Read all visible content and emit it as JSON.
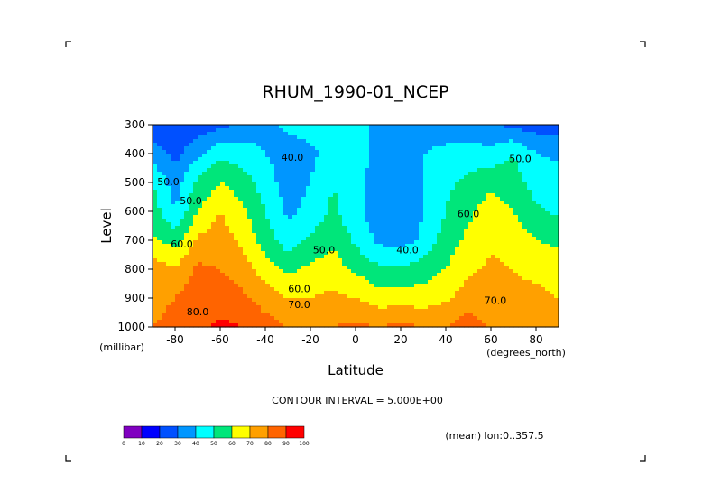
{
  "chart_data": {
    "type": "heatmap",
    "title": "RHUM_1990-01_NCEP",
    "xlabel": "Latitude",
    "ylabel": "Level",
    "x_unit": "(degrees_north)",
    "y_unit": "(millibar)",
    "xlim": [
      -90,
      90
    ],
    "ylim": [
      1000,
      300
    ],
    "x_ticks": [
      "-80",
      "-60",
      "-40",
      "-20",
      "0",
      "20",
      "40",
      "60",
      "80"
    ],
    "y_ticks": [
      "300",
      "400",
      "500",
      "600",
      "700",
      "800",
      "900",
      "1000"
    ],
    "contour_interval_text": "CONTOUR INTERVAL = 5.000E+00",
    "footnote": "(mean) lon:0..357.5",
    "contour_labels": [
      {
        "text": "40.0",
        "x": -28,
        "y": 425
      },
      {
        "text": "40.0",
        "x": 23,
        "y": 745
      },
      {
        "text": "50.0",
        "x": -83,
        "y": 510
      },
      {
        "text": "50.0",
        "x": -73,
        "y": 575
      },
      {
        "text": "50.0",
        "x": -14,
        "y": 745
      },
      {
        "text": "50.0",
        "x": 73,
        "y": 430
      },
      {
        "text": "60.0",
        "x": -77,
        "y": 725
      },
      {
        "text": "60.0",
        "x": -25,
        "y": 880
      },
      {
        "text": "60.0",
        "x": 50,
        "y": 620
      },
      {
        "text": "70.0",
        "x": -25,
        "y": 935
      },
      {
        "text": "70.0",
        "x": 62,
        "y": 920
      },
      {
        "text": "80.0",
        "x": -70,
        "y": 960
      }
    ],
    "colorbar": {
      "labels": [
        "0",
        "10",
        "20",
        "30",
        "40",
        "50",
        "60",
        "70",
        "80",
        "90",
        "100"
      ],
      "colors": [
        "#8000c0",
        "#0000ff",
        "#0050ff",
        "#0096ff",
        "#00ffff",
        "#00e67a",
        "#ffff00",
        "#ffa000",
        "#ff6400",
        "#ff0000"
      ]
    },
    "latitudes": [
      -90,
      -80,
      -70,
      -60,
      -50,
      -40,
      -30,
      -20,
      -10,
      0,
      10,
      20,
      30,
      40,
      50,
      60,
      70,
      80,
      90
    ],
    "levels": [
      300,
      400,
      500,
      600,
      700,
      800,
      900,
      1000
    ],
    "values": [
      [
        22,
        20,
        23,
        27,
        33,
        38,
        42,
        45,
        50,
        46,
        36,
        35,
        36,
        36,
        33,
        30,
        28,
        25,
        25
      ],
      [
        35,
        27,
        38,
        48,
        45,
        40,
        35,
        37,
        45,
        45,
        37,
        35,
        40,
        42,
        45,
        43,
        50,
        40,
        38
      ],
      [
        50,
        35,
        52,
        60,
        55,
        45,
        35,
        40,
        50,
        43,
        35,
        33,
        40,
        48,
        52,
        58,
        55,
        45,
        45
      ],
      [
        55,
        40,
        60,
        70,
        62,
        50,
        38,
        43,
        52,
        43,
        33,
        30,
        40,
        50,
        58,
        65,
        60,
        52,
        48
      ],
      [
        62,
        55,
        72,
        75,
        68,
        55,
        45,
        52,
        58,
        48,
        38,
        35,
        42,
        55,
        62,
        68,
        65,
        60,
        58
      ],
      [
        75,
        72,
        82,
        80,
        75,
        65,
        58,
        62,
        65,
        58,
        52,
        52,
        55,
        60,
        68,
        72,
        70,
        68,
        65
      ],
      [
        78,
        80,
        85,
        85,
        82,
        75,
        70,
        70,
        72,
        70,
        65,
        65,
        65,
        68,
        75,
        72,
        72,
        72,
        70
      ],
      [
        80,
        82,
        88,
        92,
        90,
        85,
        80,
        78,
        80,
        82,
        80,
        82,
        80,
        80,
        85,
        80,
        78,
        75,
        70
      ]
    ]
  }
}
